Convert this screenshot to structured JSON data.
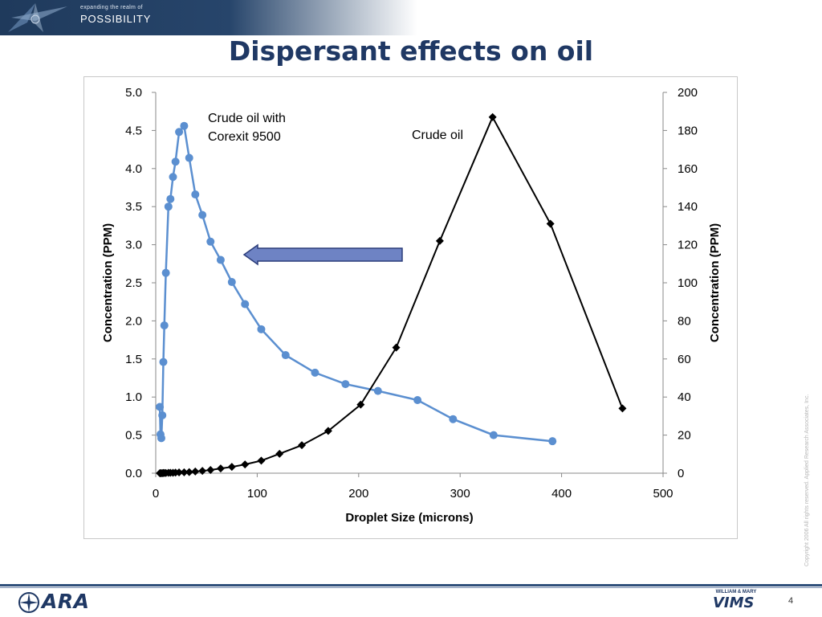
{
  "header": {
    "tagline": "expanding the realm of",
    "brand_word": "POSSIBILITY"
  },
  "slide": {
    "title": "Dispersant effects on oil",
    "page_number": "4"
  },
  "copyright": "Copyright 2006 All rights reserved. Applied Research Associates, Inc.",
  "footer": {
    "left_logo_text": "ARA",
    "right_logo_top": "WILLIAM & MARY",
    "right_logo_text": "VIMS"
  },
  "colors": {
    "title": "#1f3864",
    "series_dispersed": "#5b8fd0",
    "series_crude": "#000000",
    "arrow_fill": "#6e83c4",
    "header_band": "#1f3a5c"
  },
  "chart_data": {
    "type": "scatter",
    "xlabel": "Droplet Size  (microns)",
    "ylabel": "Concentration (PPM)",
    "y2label": "Concentration (PPM)",
    "xlim": [
      0,
      500
    ],
    "ylim": [
      0,
      5
    ],
    "y2lim": [
      0,
      200
    ],
    "x_ticks": [
      "0",
      "100",
      "200",
      "300",
      "400",
      "500"
    ],
    "y_ticks": [
      "0.0",
      "0.5",
      "1.0",
      "1.5",
      "2.0",
      "2.5",
      "3.0",
      "3.5",
      "4.0",
      "4.5",
      "5.0"
    ],
    "y2_ticks": [
      "0",
      "20",
      "40",
      "60",
      "80",
      "100",
      "120",
      "140",
      "160",
      "180",
      "200"
    ],
    "grid": false,
    "legend": "none",
    "annotations": [
      {
        "text": "Crude oil with Corexit 9500",
        "lines": [
          "Crude oil with",
          "Corexit 9500"
        ]
      },
      {
        "text": "Crude oil",
        "lines": [
          "Crude oil"
        ]
      },
      {
        "text": "arrow pointing left (shift toward smaller droplets)"
      }
    ],
    "series": [
      {
        "name": "Crude oil with Corexit 9500",
        "axis": "left",
        "marker": "circle",
        "color": "#5b8fd0",
        "x": [
          4,
          4.7,
          5.5,
          6.5,
          7.5,
          8.5,
          10,
          12.5,
          14.5,
          17,
          19.5,
          23,
          28,
          33,
          39,
          46,
          54,
          64,
          75,
          88,
          104,
          128,
          157,
          187,
          219,
          258,
          293,
          333,
          391
        ],
        "y": [
          0.87,
          0.51,
          0.46,
          0.76,
          1.46,
          1.94,
          2.63,
          3.5,
          3.6,
          3.89,
          4.09,
          4.48,
          4.56,
          4.14,
          3.66,
          3.39,
          3.04,
          2.8,
          2.51,
          2.22,
          1.89,
          1.55,
          1.32,
          1.17,
          1.08,
          0.96,
          0.71,
          0.5,
          0.42
        ]
      },
      {
        "name": "Crude oil",
        "axis": "right",
        "marker": "diamond",
        "color": "#000000",
        "x": [
          4,
          4.7,
          5.5,
          6.5,
          7.5,
          8.5,
          10,
          12.5,
          14.5,
          17,
          19.5,
          23,
          28,
          33,
          39,
          46,
          54,
          64,
          75,
          88,
          104,
          122,
          144,
          170,
          202,
          237,
          280,
          332,
          389,
          460
        ],
        "y": [
          0,
          0,
          0,
          0,
          0.1,
          0.1,
          0.1,
          0.2,
          0.2,
          0.2,
          0.3,
          0.4,
          0.5,
          0.6,
          0.9,
          1.2,
          1.7,
          2.5,
          3.3,
          4.6,
          6.6,
          10.2,
          14.7,
          22.2,
          36,
          66,
          122,
          187,
          131,
          34
        ]
      }
    ]
  }
}
